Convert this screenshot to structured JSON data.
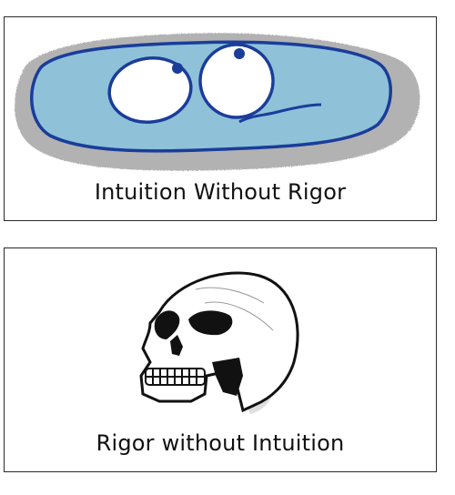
{
  "panels": [
    {
      "caption": "Intuition Without Rigor",
      "illustration": "blob-with-eyes"
    },
    {
      "caption": "Rigor without Intuition",
      "illustration": "skull"
    }
  ],
  "colors": {
    "blob_outline": "#1a3d9a",
    "blob_fill": "#86bfdc",
    "shadow": "#9a9a9a",
    "skull_ink": "#111111",
    "skull_shade": "#bdbdbd"
  }
}
